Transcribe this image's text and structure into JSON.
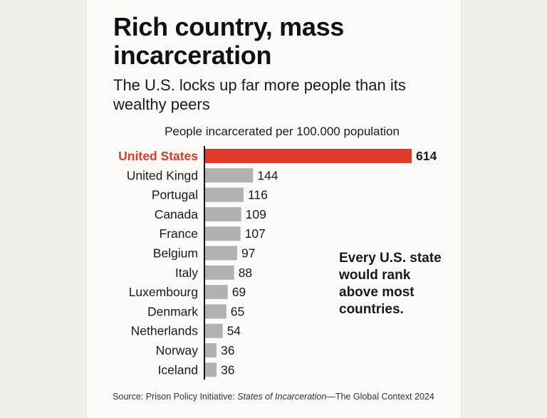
{
  "title": "Rich country, mass incarceration",
  "subtitle": "The U.S. locks up far more people than its wealthy peers",
  "note": "Every U.S. state would rank above most countries.",
  "source": {
    "prefix": "Source: Prison Policy Initiative: ",
    "italic": "States of Incarceration",
    "suffix": "—The Global Context 2024"
  },
  "colors": {
    "highlight": "#e03a2a",
    "bar": "#b3b1ae",
    "axis": "#111111"
  },
  "chart_data": {
    "type": "bar",
    "orientation": "horizontal",
    "xlabel": "People incarcerated per 100.000 population",
    "categories": [
      "United States",
      "United Kingd",
      "Portugal",
      "Canada",
      "France",
      "Belgium",
      "Italy",
      "Luxembourg",
      "Denmark",
      "Netherlands",
      "Norway",
      "Iceland"
    ],
    "values": [
      614,
      144,
      116,
      109,
      107,
      97,
      88,
      69,
      65,
      54,
      36,
      36
    ],
    "highlight": "United States",
    "xlim": [
      0,
      614
    ],
    "grid": false,
    "legend": "none"
  }
}
